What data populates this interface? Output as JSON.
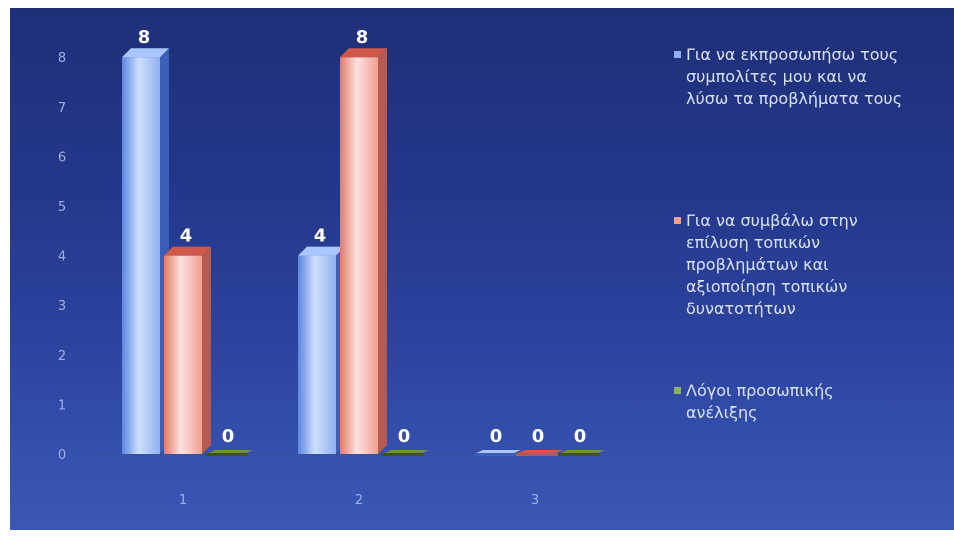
{
  "chart_data": {
    "type": "bar",
    "title": "",
    "xlabel": "",
    "ylabel": "",
    "categories": [
      "1",
      "2",
      "3"
    ],
    "y_ticks": [
      "0",
      "1",
      "2",
      "3",
      "4",
      "5",
      "6",
      "7",
      "8"
    ],
    "ylim": [
      0,
      8
    ],
    "grid": false,
    "legend_position": "right",
    "series": [
      {
        "name": "Για να εκπροσωπήσω τους συμπολίτες μου και να λύσω τα προβλήματα τους",
        "legend_lines": [
          "Για να εκπροσωπήσω τους",
          "συμπολίτες μου και να",
          "λύσω τα προβλήματα τους"
        ],
        "values": [
          8,
          4,
          0
        ],
        "value_labels": [
          "8",
          "4",
          "0"
        ],
        "color": "#7fa6ee"
      },
      {
        "name": "Για να συμβάλω στην επίλυση τοπικών προβλημάτων και αξιοποίηση τοπικών δυνατοτήτων",
        "legend_lines": [
          "Για να συμβάλω στην",
          "επίλυση τοπικών",
          "προβλημάτων και",
          "αξιοποίηση τοπικών",
          "δυνατοτήτων"
        ],
        "values": [
          4,
          8,
          0
        ],
        "value_labels": [
          "4",
          "8",
          "0"
        ],
        "color": "#f2a092"
      },
      {
        "name": "Λόγοι προσωπικής ανέλιξης",
        "legend_lines": [
          "Λόγοι προσωπικής",
          "ανέλιξης"
        ],
        "values": [
          0,
          0,
          0
        ],
        "value_labels": [
          "0",
          "0",
          "0"
        ],
        "color": "#6f8f3a"
      }
    ]
  }
}
